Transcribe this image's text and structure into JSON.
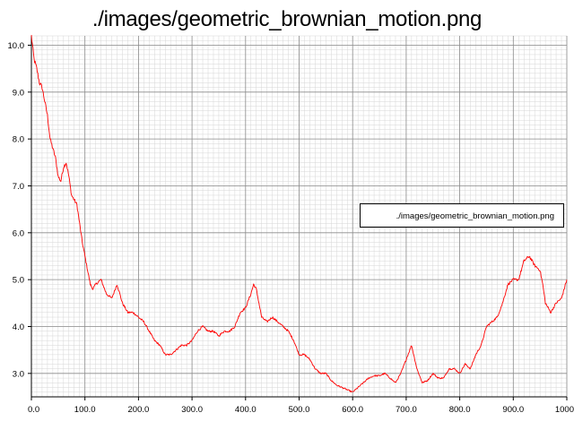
{
  "title": "./images/geometric_brownian_motion.png",
  "colors": {
    "series": "#ff0000",
    "grid_major": "#8c8c8c",
    "grid_minor": "#d6d6d6",
    "axis": "#000000"
  },
  "chart_data": {
    "type": "line",
    "title": "./images/geometric_brownian_motion.png",
    "xlabel": "",
    "ylabel": "",
    "xlim": [
      0,
      1000
    ],
    "ylim": [
      2.5,
      10.2
    ],
    "x_ticks": [
      "0.0",
      "100.0",
      "200.0",
      "300.0",
      "400.0",
      "500.0",
      "600.0",
      "700.0",
      "800.0",
      "900.0",
      "1000"
    ],
    "y_ticks": [
      "3.0",
      "4.0",
      "5.0",
      "6.0",
      "7.0",
      "8.0",
      "9.0",
      "10.0"
    ],
    "grid": true,
    "legend": {
      "position": "right",
      "entries": [
        "./images/geometric_brownian_motion.png"
      ]
    },
    "series": [
      {
        "name": "./images/geometric_brownian_motion.png",
        "color": "#ff0000",
        "x": [
          0,
          5,
          10,
          15,
          20,
          25,
          30,
          35,
          40,
          45,
          50,
          55,
          60,
          65,
          70,
          75,
          80,
          85,
          90,
          95,
          100,
          105,
          110,
          115,
          120,
          130,
          140,
          150,
          160,
          170,
          180,
          190,
          200,
          210,
          220,
          230,
          240,
          250,
          260,
          270,
          280,
          290,
          300,
          310,
          320,
          330,
          340,
          350,
          360,
          370,
          380,
          390,
          400,
          410,
          415,
          420,
          425,
          430,
          440,
          450,
          460,
          470,
          480,
          490,
          500,
          510,
          520,
          530,
          540,
          550,
          560,
          570,
          580,
          590,
          600,
          610,
          620,
          630,
          640,
          650,
          660,
          670,
          680,
          690,
          700,
          710,
          720,
          730,
          740,
          750,
          760,
          770,
          780,
          790,
          800,
          810,
          820,
          830,
          840,
          850,
          860,
          870,
          880,
          890,
          900,
          910,
          920,
          930,
          940,
          950,
          955,
          960,
          970,
          980,
          990,
          1000
        ],
        "y": [
          10.2,
          9.7,
          9.5,
          9.2,
          9.1,
          8.8,
          8.5,
          8.0,
          7.8,
          7.6,
          7.2,
          7.1,
          7.4,
          7.5,
          7.2,
          6.8,
          6.7,
          6.6,
          6.2,
          5.8,
          5.5,
          5.2,
          4.9,
          4.8,
          4.9,
          5.0,
          4.7,
          4.6,
          4.9,
          4.5,
          4.3,
          4.3,
          4.2,
          4.1,
          3.9,
          3.7,
          3.6,
          3.4,
          3.4,
          3.5,
          3.6,
          3.6,
          3.7,
          3.9,
          4.0,
          3.9,
          3.9,
          3.8,
          3.9,
          3.9,
          4.0,
          4.3,
          4.4,
          4.7,
          4.9,
          4.8,
          4.5,
          4.2,
          4.1,
          4.2,
          4.1,
          4.0,
          3.9,
          3.7,
          3.4,
          3.4,
          3.3,
          3.1,
          3.0,
          3.0,
          2.85,
          2.75,
          2.7,
          2.65,
          2.6,
          2.7,
          2.8,
          2.9,
          2.95,
          2.95,
          3.0,
          2.9,
          2.8,
          3.0,
          3.3,
          3.6,
          3.1,
          2.8,
          2.85,
          3.0,
          2.9,
          2.9,
          3.1,
          3.1,
          3.0,
          3.2,
          3.1,
          3.4,
          3.6,
          4.0,
          4.1,
          4.2,
          4.5,
          4.9,
          5.0,
          5.0,
          5.4,
          5.5,
          5.3,
          5.2,
          4.9,
          4.5,
          4.3,
          4.5,
          4.6,
          5.0
        ]
      }
    ]
  }
}
